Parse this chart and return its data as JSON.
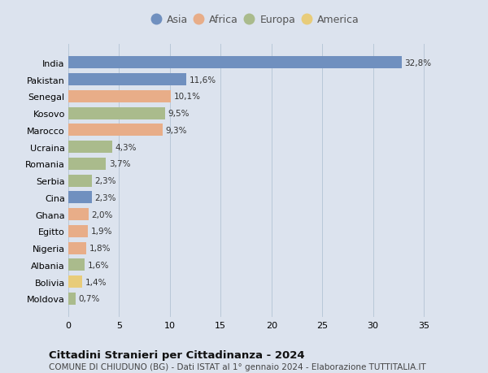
{
  "countries": [
    "India",
    "Pakistan",
    "Senegal",
    "Kosovo",
    "Marocco",
    "Ucraina",
    "Romania",
    "Serbia",
    "Cina",
    "Ghana",
    "Egitto",
    "Nigeria",
    "Albania",
    "Bolivia",
    "Moldova"
  ],
  "values": [
    32.8,
    11.6,
    10.1,
    9.5,
    9.3,
    4.3,
    3.7,
    2.3,
    2.3,
    2.0,
    1.9,
    1.8,
    1.6,
    1.4,
    0.7
  ],
  "labels": [
    "32,8%",
    "11,6%",
    "10,1%",
    "9,5%",
    "9,3%",
    "4,3%",
    "3,7%",
    "2,3%",
    "2,3%",
    "2,0%",
    "1,9%",
    "1,8%",
    "1,6%",
    "1,4%",
    "0,7%"
  ],
  "continents": [
    "Asia",
    "Asia",
    "Africa",
    "Europa",
    "Africa",
    "Europa",
    "Europa",
    "Europa",
    "Asia",
    "Africa",
    "Africa",
    "Africa",
    "Europa",
    "America",
    "Europa"
  ],
  "colors": {
    "Asia": "#7090bf",
    "Africa": "#e8ad88",
    "Europa": "#aabb8c",
    "America": "#e8cc7a"
  },
  "legend_order": [
    "Asia",
    "Africa",
    "Europa",
    "America"
  ],
  "title1": "Cittadini Stranieri per Cittadinanza - 2024",
  "title2": "COMUNE DI CHIUDUNO (BG) - Dati ISTAT al 1° gennaio 2024 - Elaborazione TUTTITALIA.IT",
  "xlim": [
    0,
    37
  ],
  "xticks": [
    0,
    5,
    10,
    15,
    20,
    25,
    30,
    35
  ],
  "background_color": "#dce3ee",
  "plot_bg_color": "#dce3ee"
}
